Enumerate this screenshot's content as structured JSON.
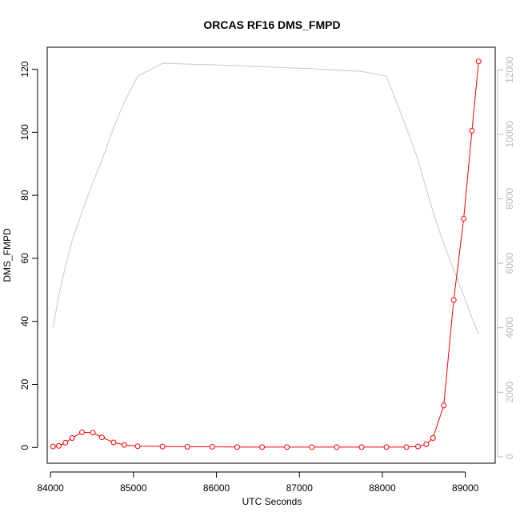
{
  "chart_data": {
    "type": "line",
    "title": "ORCAS RF16 DMS_FMPD",
    "xlabel": "UTC Seconds",
    "ylabel": "DMS_FMPD",
    "xlim": [
      83960,
      89360
    ],
    "ylim": [
      -5,
      127
    ],
    "y2lim": [
      -200,
      12700
    ],
    "x_ticks": [
      84000,
      85000,
      86000,
      87000,
      88000,
      89000
    ],
    "y_ticks": [
      0,
      20,
      40,
      60,
      80,
      100,
      120
    ],
    "y2_ticks": [
      0,
      2000,
      4000,
      6000,
      8000,
      10000,
      12000
    ],
    "grid": false,
    "series": [
      {
        "axis": "left",
        "color": "#ff0000",
        "markers": "open-circle",
        "x": [
          84030,
          84100,
          84180,
          84260,
          84380,
          84510,
          84620,
          84760,
          84890,
          85050,
          85350,
          85650,
          85950,
          86250,
          86550,
          86850,
          87150,
          87450,
          87750,
          88050,
          88290,
          88430,
          88530,
          88610,
          88740,
          88860,
          88980,
          89080,
          89160
        ],
        "values": [
          0.3,
          0.5,
          1.5,
          3.0,
          4.8,
          4.7,
          3.2,
          1.6,
          0.8,
          0.4,
          0.3,
          0.2,
          0.2,
          0.1,
          0.1,
          0.1,
          0.1,
          0.1,
          0.1,
          0.1,
          0.1,
          0.3,
          1.0,
          3.0,
          13.3,
          46.8,
          72.6,
          100.5,
          122.5
        ]
      },
      {
        "axis": "right",
        "color": "#c8c8c8",
        "markers": "none",
        "x": [
          84030,
          84100,
          84180,
          84260,
          84380,
          84510,
          84620,
          84760,
          84890,
          85050,
          85350,
          86000,
          86500,
          87000,
          87750,
          88050,
          88290,
          88430,
          88530,
          88610,
          88740,
          88860,
          88980,
          89080,
          89160
        ],
        "values": [
          4000,
          5000,
          5900,
          6700,
          7600,
          8500,
          9200,
          10200,
          11000,
          11800,
          12200,
          12150,
          12100,
          12050,
          11950,
          11800,
          10200,
          9200,
          8300,
          7600,
          6600,
          5800,
          5000,
          4300,
          3800
        ]
      }
    ]
  }
}
